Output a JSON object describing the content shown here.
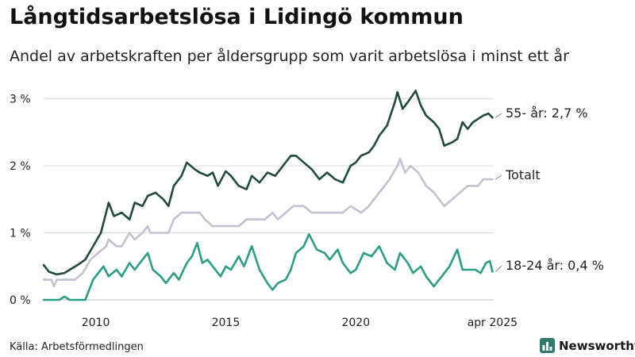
{
  "title": "Långtidsarbetslösa i Lidingö kommun",
  "subtitle": "Andel av arbetskraften per åldersgrupp som varit arbetslösa i minst ett år",
  "source": "Källa: Arbetsförmedlingen",
  "brand": {
    "name": "Newsworthy",
    "icon": "bar-chart-logo-icon",
    "color": "#2f7a6e"
  },
  "chart_data": {
    "type": "line",
    "title": "Långtidsarbetslösa i Lidingö kommun",
    "ylabel": "",
    "xlabel": "",
    "ylim": [
      0,
      3.2
    ],
    "xlim": [
      2008.0,
      2025.3
    ],
    "y_ticks": [
      {
        "value": 0,
        "label": "0 %"
      },
      {
        "value": 1,
        "label": "1 %"
      },
      {
        "value": 2,
        "label": "2 %"
      },
      {
        "value": 3,
        "label": "3 %"
      }
    ],
    "x_ticks": [
      {
        "value": 2010.0,
        "label": "2010"
      },
      {
        "value": 2015.0,
        "label": "2015"
      },
      {
        "value": 2020.0,
        "label": "2020"
      },
      {
        "value": 2025.25,
        "label": "apr 2025"
      }
    ],
    "grid": "horizontal",
    "series": [
      {
        "name": "55- år",
        "end_label": "55- år: 2,7 %",
        "color": "#1f4a3c",
        "points": [
          [
            2008.0,
            0.52
          ],
          [
            2008.2,
            0.42
          ],
          [
            2008.5,
            0.38
          ],
          [
            2008.8,
            0.4
          ],
          [
            2009.0,
            0.45
          ],
          [
            2009.3,
            0.52
          ],
          [
            2009.6,
            0.6
          ],
          [
            2009.9,
            0.8
          ],
          [
            2010.2,
            1.0
          ],
          [
            2010.4,
            1.3
          ],
          [
            2010.5,
            1.45
          ],
          [
            2010.7,
            1.25
          ],
          [
            2011.0,
            1.3
          ],
          [
            2011.3,
            1.2
          ],
          [
            2011.5,
            1.45
          ],
          [
            2011.8,
            1.4
          ],
          [
            2012.0,
            1.55
          ],
          [
            2012.3,
            1.6
          ],
          [
            2012.6,
            1.5
          ],
          [
            2012.8,
            1.4
          ],
          [
            2013.0,
            1.7
          ],
          [
            2013.3,
            1.85
          ],
          [
            2013.5,
            2.05
          ],
          [
            2013.8,
            1.95
          ],
          [
            2014.0,
            1.9
          ],
          [
            2014.3,
            1.85
          ],
          [
            2014.5,
            1.9
          ],
          [
            2014.7,
            1.7
          ],
          [
            2015.0,
            1.92
          ],
          [
            2015.2,
            1.85
          ],
          [
            2015.5,
            1.7
          ],
          [
            2015.8,
            1.65
          ],
          [
            2016.0,
            1.85
          ],
          [
            2016.3,
            1.75
          ],
          [
            2016.6,
            1.9
          ],
          [
            2016.9,
            1.85
          ],
          [
            2017.2,
            2.0
          ],
          [
            2017.5,
            2.15
          ],
          [
            2017.7,
            2.15
          ],
          [
            2018.0,
            2.05
          ],
          [
            2018.3,
            1.95
          ],
          [
            2018.6,
            1.8
          ],
          [
            2018.9,
            1.9
          ],
          [
            2019.2,
            1.8
          ],
          [
            2019.5,
            1.75
          ],
          [
            2019.8,
            2.0
          ],
          [
            2020.0,
            2.05
          ],
          [
            2020.2,
            2.15
          ],
          [
            2020.5,
            2.2
          ],
          [
            2020.7,
            2.3
          ],
          [
            2020.9,
            2.45
          ],
          [
            2021.2,
            2.6
          ],
          [
            2021.5,
            2.95
          ],
          [
            2021.6,
            3.1
          ],
          [
            2021.8,
            2.85
          ],
          [
            2022.0,
            2.95
          ],
          [
            2022.3,
            3.12
          ],
          [
            2022.5,
            2.9
          ],
          [
            2022.7,
            2.75
          ],
          [
            2023.0,
            2.65
          ],
          [
            2023.2,
            2.55
          ],
          [
            2023.4,
            2.3
          ],
          [
            2023.7,
            2.35
          ],
          [
            2023.9,
            2.4
          ],
          [
            2024.1,
            2.65
          ],
          [
            2024.3,
            2.55
          ],
          [
            2024.5,
            2.65
          ],
          [
            2024.7,
            2.7
          ],
          [
            2024.9,
            2.75
          ],
          [
            2025.1,
            2.78
          ],
          [
            2025.25,
            2.72
          ]
        ]
      },
      {
        "name": "Totalt",
        "end_label": "Totalt",
        "color": "#c3c1d1",
        "points": [
          [
            2008.0,
            0.3
          ],
          [
            2008.3,
            0.3
          ],
          [
            2008.4,
            0.2
          ],
          [
            2008.5,
            0.3
          ],
          [
            2009.2,
            0.3
          ],
          [
            2009.5,
            0.4
          ],
          [
            2009.8,
            0.6
          ],
          [
            2010.1,
            0.7
          ],
          [
            2010.4,
            0.8
          ],
          [
            2010.5,
            0.9
          ],
          [
            2010.8,
            0.8
          ],
          [
            2011.0,
            0.8
          ],
          [
            2011.3,
            1.0
          ],
          [
            2011.5,
            0.9
          ],
          [
            2011.8,
            1.0
          ],
          [
            2012.0,
            1.1
          ],
          [
            2012.1,
            1.0
          ],
          [
            2012.6,
            1.0
          ],
          [
            2012.8,
            1.0
          ],
          [
            2013.0,
            1.2
          ],
          [
            2013.3,
            1.3
          ],
          [
            2014.0,
            1.3
          ],
          [
            2014.2,
            1.2
          ],
          [
            2014.5,
            1.1
          ],
          [
            2015.5,
            1.1
          ],
          [
            2015.8,
            1.2
          ],
          [
            2016.5,
            1.2
          ],
          [
            2016.8,
            1.3
          ],
          [
            2017.0,
            1.2
          ],
          [
            2017.3,
            1.3
          ],
          [
            2017.6,
            1.4
          ],
          [
            2018.0,
            1.4
          ],
          [
            2018.3,
            1.3
          ],
          [
            2019.5,
            1.3
          ],
          [
            2019.8,
            1.4
          ],
          [
            2020.2,
            1.3
          ],
          [
            2020.5,
            1.4
          ],
          [
            2020.9,
            1.6
          ],
          [
            2021.3,
            1.8
          ],
          [
            2021.6,
            2.0
          ],
          [
            2021.7,
            2.1
          ],
          [
            2021.9,
            1.9
          ],
          [
            2022.1,
            2.0
          ],
          [
            2022.4,
            1.9
          ],
          [
            2022.7,
            1.7
          ],
          [
            2023.0,
            1.6
          ],
          [
            2023.2,
            1.5
          ],
          [
            2023.4,
            1.4
          ],
          [
            2023.7,
            1.5
          ],
          [
            2024.0,
            1.6
          ],
          [
            2024.3,
            1.7
          ],
          [
            2024.7,
            1.7
          ],
          [
            2024.9,
            1.8
          ],
          [
            2025.25,
            1.8
          ]
        ]
      },
      {
        "name": "18-24 år",
        "end_label": "18-24 år: 0,4 %",
        "color": "#2a9d84",
        "points": [
          [
            2008.0,
            0.0
          ],
          [
            2008.6,
            0.0
          ],
          [
            2008.8,
            0.05
          ],
          [
            2009.0,
            0.0
          ],
          [
            2009.6,
            0.0
          ],
          [
            2009.9,
            0.3
          ],
          [
            2010.1,
            0.4
          ],
          [
            2010.3,
            0.5
          ],
          [
            2010.5,
            0.35
          ],
          [
            2010.8,
            0.45
          ],
          [
            2011.0,
            0.35
          ],
          [
            2011.3,
            0.55
          ],
          [
            2011.5,
            0.45
          ],
          [
            2011.8,
            0.6
          ],
          [
            2012.0,
            0.7
          ],
          [
            2012.2,
            0.45
          ],
          [
            2012.5,
            0.35
          ],
          [
            2012.7,
            0.25
          ],
          [
            2013.0,
            0.4
          ],
          [
            2013.2,
            0.3
          ],
          [
            2013.5,
            0.55
          ],
          [
            2013.7,
            0.65
          ],
          [
            2013.9,
            0.85
          ],
          [
            2014.1,
            0.55
          ],
          [
            2014.3,
            0.6
          ],
          [
            2014.6,
            0.45
          ],
          [
            2014.8,
            0.35
          ],
          [
            2015.0,
            0.5
          ],
          [
            2015.2,
            0.45
          ],
          [
            2015.5,
            0.65
          ],
          [
            2015.7,
            0.5
          ],
          [
            2016.0,
            0.8
          ],
          [
            2016.3,
            0.45
          ],
          [
            2016.6,
            0.25
          ],
          [
            2016.8,
            0.15
          ],
          [
            2017.0,
            0.25
          ],
          [
            2017.3,
            0.3
          ],
          [
            2017.5,
            0.45
          ],
          [
            2017.7,
            0.7
          ],
          [
            2018.0,
            0.8
          ],
          [
            2018.2,
            0.98
          ],
          [
            2018.5,
            0.75
          ],
          [
            2018.8,
            0.7
          ],
          [
            2019.0,
            0.6
          ],
          [
            2019.3,
            0.75
          ],
          [
            2019.5,
            0.55
          ],
          [
            2019.8,
            0.4
          ],
          [
            2020.0,
            0.45
          ],
          [
            2020.3,
            0.7
          ],
          [
            2020.6,
            0.65
          ],
          [
            2020.9,
            0.8
          ],
          [
            2021.2,
            0.55
          ],
          [
            2021.5,
            0.45
          ],
          [
            2021.7,
            0.7
          ],
          [
            2022.0,
            0.55
          ],
          [
            2022.2,
            0.4
          ],
          [
            2022.5,
            0.5
          ],
          [
            2022.7,
            0.35
          ],
          [
            2023.0,
            0.2
          ],
          [
            2023.3,
            0.35
          ],
          [
            2023.6,
            0.5
          ],
          [
            2023.9,
            0.75
          ],
          [
            2024.1,
            0.45
          ],
          [
            2024.3,
            0.45
          ],
          [
            2024.6,
            0.45
          ],
          [
            2024.8,
            0.4
          ],
          [
            2025.0,
            0.55
          ],
          [
            2025.15,
            0.58
          ],
          [
            2025.25,
            0.42
          ]
        ]
      }
    ]
  }
}
